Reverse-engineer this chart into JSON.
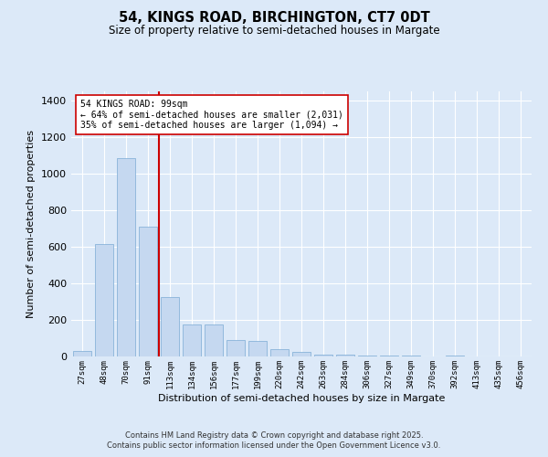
{
  "title": "54, KINGS ROAD, BIRCHINGTON, CT7 0DT",
  "subtitle": "Size of property relative to semi-detached houses in Margate",
  "xlabel": "Distribution of semi-detached houses by size in Margate",
  "ylabel": "Number of semi-detached properties",
  "categories": [
    "27sqm",
    "48sqm",
    "70sqm",
    "91sqm",
    "113sqm",
    "134sqm",
    "156sqm",
    "177sqm",
    "199sqm",
    "220sqm",
    "242sqm",
    "263sqm",
    "284sqm",
    "306sqm",
    "327sqm",
    "349sqm",
    "370sqm",
    "392sqm",
    "413sqm",
    "435sqm",
    "456sqm"
  ],
  "values": [
    28,
    615,
    1085,
    710,
    325,
    175,
    175,
    90,
    85,
    40,
    25,
    10,
    10,
    5,
    5,
    5,
    0,
    5,
    0,
    0,
    0
  ],
  "bar_color": "#c5d8f0",
  "bar_edge_color": "#7baad4",
  "subject_label": "54 KINGS ROAD: 99sqm",
  "annotation_smaller": "← 64% of semi-detached houses are smaller (2,031)",
  "annotation_larger": "35% of semi-detached houses are larger (1,094) →",
  "subject_line_color": "#cc0000",
  "annotation_box_color": "#ffffff",
  "annotation_box_edge": "#cc0000",
  "ylim": [
    0,
    1450
  ],
  "yticks": [
    0,
    200,
    400,
    600,
    800,
    1000,
    1200,
    1400
  ],
  "bg_color": "#dce9f8",
  "grid_color": "#ffffff",
  "fig_bg_color": "#dce9f8",
  "footer1": "Contains HM Land Registry data © Crown copyright and database right 2025.",
  "footer2": "Contains public sector information licensed under the Open Government Licence v3.0."
}
